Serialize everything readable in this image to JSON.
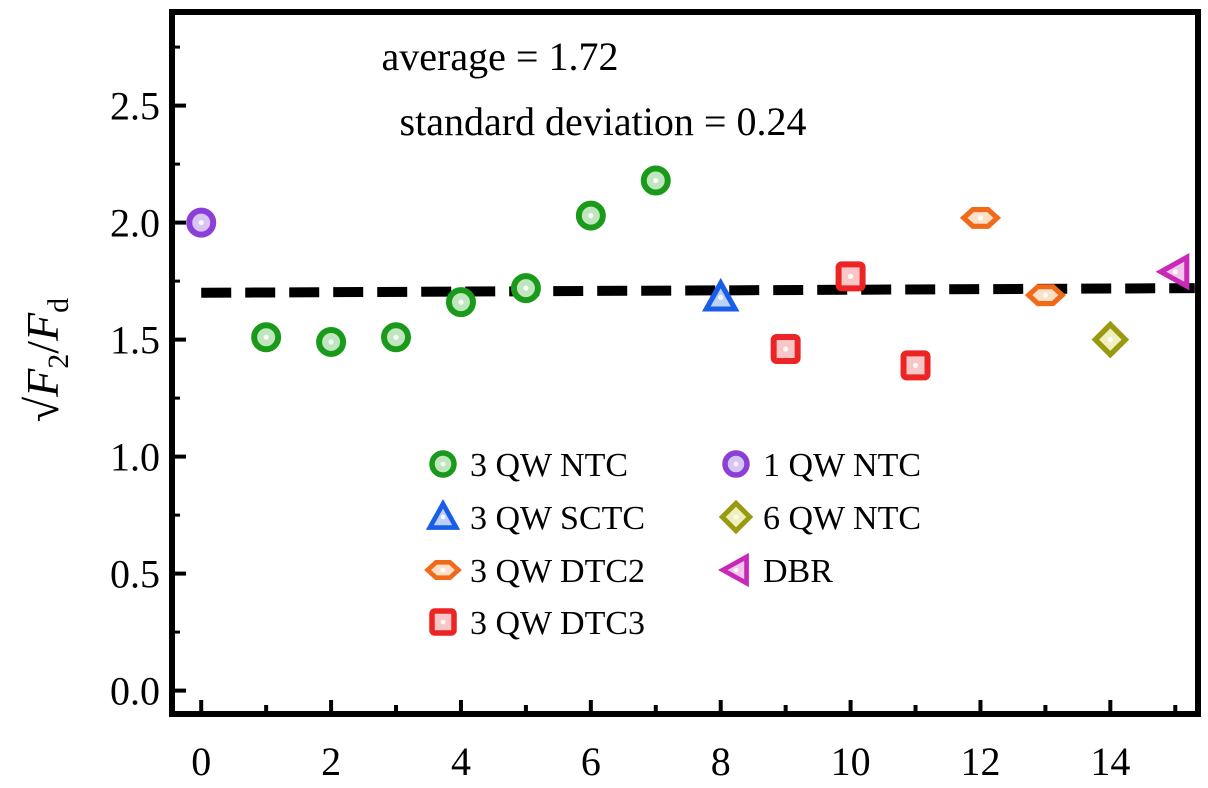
{
  "chart_data": {
    "type": "scatter",
    "title": "",
    "xlabel": "",
    "ylabel": {
      "radical": "√",
      "f2": "F",
      "sub2": "2",
      "slash": "/",
      "fd": "F",
      "subd": "d"
    },
    "xlim": [
      -0.45,
      15.35
    ],
    "ylim": [
      -0.1,
      2.9
    ],
    "xticks": [
      0,
      2,
      4,
      6,
      8,
      10,
      12,
      14
    ],
    "xminor": [
      1,
      3,
      5,
      7,
      9,
      11,
      13,
      15
    ],
    "yticks": [
      0.0,
      0.5,
      1.0,
      1.5,
      2.0,
      2.5
    ],
    "ytick_labels": [
      "0.0",
      "0.5",
      "1.0",
      "1.5",
      "2.0",
      "2.5"
    ],
    "annotations": {
      "average": "average = 1.72",
      "std": "standard deviation = 0.24"
    },
    "fit_line": {
      "style": "dashed",
      "color": "#000000",
      "x": [
        0,
        15.3
      ],
      "y": [
        1.7,
        1.72
      ]
    },
    "series": [
      {
        "name": "3 QW NTC",
        "marker": "circle",
        "color": "#1a9a1a",
        "fill": "#bfe6bf",
        "x": [
          1,
          2,
          3,
          4,
          5,
          6,
          7
        ],
        "y": [
          1.51,
          1.49,
          1.51,
          1.66,
          1.72,
          2.03,
          2.18
        ]
      },
      {
        "name": "1 QW NTC",
        "marker": "circle",
        "color": "#8a3fd6",
        "fill": "#d9c4f2",
        "x": [
          0
        ],
        "y": [
          2.0
        ]
      },
      {
        "name": "3 QW SCTC",
        "marker": "triangle-up",
        "color": "#1a5ee8",
        "fill": "#bcd0f8",
        "x": [
          8
        ],
        "y": [
          1.68
        ]
      },
      {
        "name": "6 QW NTC",
        "marker": "diamond",
        "color": "#9a9a10",
        "fill": "#efefc0",
        "x": [
          14
        ],
        "y": [
          1.5
        ]
      },
      {
        "name": "3 QW DTC2",
        "marker": "hexagon-wide",
        "color": "#f06a1a",
        "fill": "#fde0c8",
        "x": [
          12,
          13
        ],
        "y": [
          2.02,
          1.69
        ]
      },
      {
        "name": "DBR",
        "marker": "triangle-left",
        "color": "#c829b6",
        "fill": "#f0c6ea",
        "x": [
          15
        ],
        "y": [
          1.79
        ]
      },
      {
        "name": "3 QW DTC3",
        "marker": "square",
        "color": "#ec2424",
        "fill": "#f8c6c6",
        "x": [
          9,
          10,
          11
        ],
        "y": [
          1.46,
          1.77,
          1.39
        ]
      }
    ],
    "legend": {
      "position": "center-bottom",
      "columns": 2,
      "order": [
        "3 QW NTC",
        "1 QW NTC",
        "3 QW SCTC",
        "6 QW NTC",
        "3 QW DTC2",
        "DBR",
        "3 QW DTC3"
      ]
    }
  }
}
